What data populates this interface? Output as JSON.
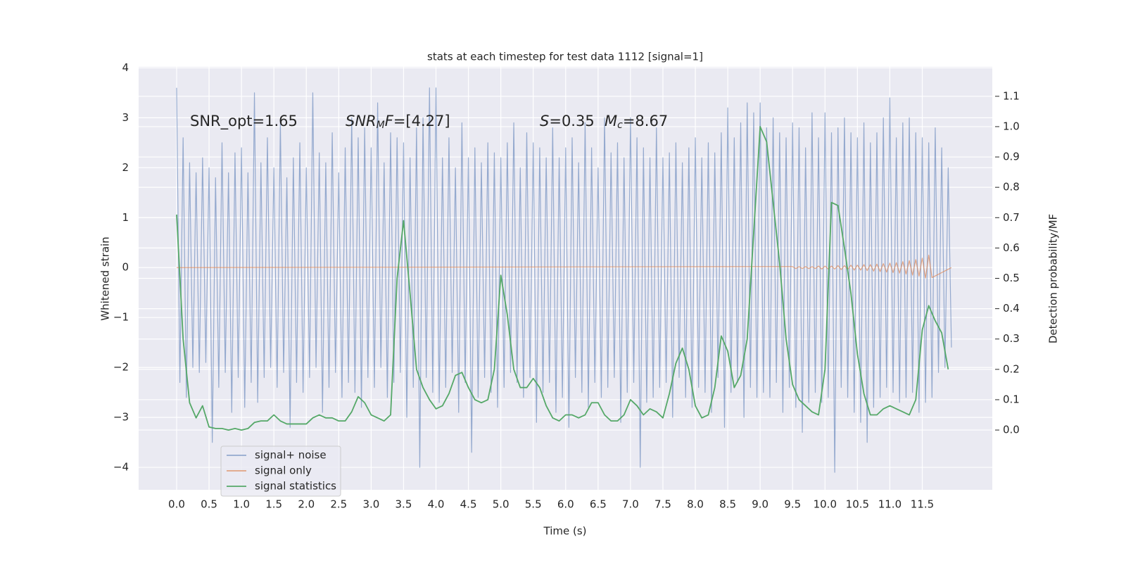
{
  "chart_data": {
    "type": "line",
    "title": "stats at each timestep for test data 1112 [signal=1]",
    "xlabel": "Time (s)",
    "ylabel": "Whitened strain",
    "y2label": "Detection probability/MF",
    "xlim": [
      -0.586,
      12.58
    ],
    "ylim": [
      -4.45,
      4.02
    ],
    "y2lim": [
      -0.197,
      1.197
    ],
    "grid": true,
    "legend": "lower left",
    "xticks": [
      {
        "value": 0,
        "label": "0.0"
      },
      0.5,
      {
        "value": 1,
        "label": "1.0"
      },
      1.5,
      {
        "value": 2,
        "label": "2.0"
      },
      2.5,
      {
        "value": 3,
        "label": "3.0"
      },
      3.5,
      {
        "value": 4,
        "label": "4.0"
      },
      4.5,
      {
        "value": 5,
        "label": "5.0"
      },
      5.5,
      {
        "value": 6,
        "label": "6.0"
      },
      6.5,
      {
        "value": 7,
        "label": "7.0"
      },
      7.5,
      {
        "value": 8,
        "label": "8.0"
      },
      8.5,
      {
        "value": 9,
        "label": "9.0"
      },
      9.5,
      {
        "value": 10,
        "label": "10.0"
      },
      10.5,
      {
        "value": 11,
        "label": "11.0"
      },
      11.5
    ],
    "yticks": [
      {
        "value": -4,
        "label": "−4"
      },
      {
        "value": -3,
        "label": "−3"
      },
      {
        "value": -2,
        "label": "−2"
      },
      {
        "value": -1,
        "label": "−1"
      },
      0,
      1,
      2,
      3,
      4
    ],
    "y2ticks": [
      {
        "value": 0,
        "label": "0.0"
      },
      0.1,
      0.2,
      0.3,
      0.4,
      0.5,
      0.6,
      0.7,
      0.8,
      0.9,
      {
        "value": 1,
        "label": "1.0"
      },
      1.1
    ],
    "annotations": [
      [
        {
          "text": "SNR_opt=1.65"
        }
      ],
      [
        {
          "text": "SNR",
          "style": "italic"
        },
        {
          "text": "M",
          "style": "sub"
        },
        {
          "text": "F",
          "style": "italic"
        },
        {
          "text": "=[4.27]"
        }
      ],
      [
        {
          "text": "S",
          "style": "italic"
        },
        {
          "text": "=0.35"
        }
      ],
      [
        {
          "text": "M",
          "style": "italic"
        },
        {
          "text": "c",
          "style": "sub"
        },
        {
          "text": "=8.67"
        }
      ]
    ],
    "series": [
      {
        "name": "signal+ noise",
        "color": "#4c72b0",
        "alpha": 0.55,
        "x": [
          0,
          0.05,
          0.1,
          0.15,
          0.2,
          0.25,
          0.3,
          0.35,
          0.4,
          0.45,
          0.5,
          0.55,
          0.6,
          0.65,
          0.7,
          0.75,
          0.8,
          0.85,
          0.9,
          0.95,
          1,
          1.05,
          1.1,
          1.15,
          1.2,
          1.25,
          1.3,
          1.35,
          1.4,
          1.45,
          1.5,
          1.55,
          1.6,
          1.65,
          1.7,
          1.75,
          1.8,
          1.85,
          1.9,
          1.95,
          2,
          2.05,
          2.1,
          2.15,
          2.2,
          2.25,
          2.3,
          2.35,
          2.4,
          2.45,
          2.5,
          2.55,
          2.6,
          2.65,
          2.7,
          2.75,
          2.8,
          2.85,
          2.9,
          2.95,
          3,
          3.05,
          3.1,
          3.15,
          3.2,
          3.25,
          3.3,
          3.35,
          3.4,
          3.45,
          3.5,
          3.55,
          3.6,
          3.65,
          3.7,
          3.75,
          3.8,
          3.85,
          3.9,
          3.95,
          4,
          4.05,
          4.1,
          4.15,
          4.2,
          4.25,
          4.3,
          4.35,
          4.4,
          4.45,
          4.5,
          4.55,
          4.6,
          4.65,
          4.7,
          4.75,
          4.8,
          4.85,
          4.9,
          4.95,
          5,
          5.05,
          5.1,
          5.15,
          5.2,
          5.25,
          5.3,
          5.35,
          5.4,
          5.45,
          5.5,
          5.55,
          5.6,
          5.65,
          5.7,
          5.75,
          5.8,
          5.85,
          5.9,
          5.95,
          6,
          6.05,
          6.1,
          6.15,
          6.2,
          6.25,
          6.3,
          6.35,
          6.4,
          6.45,
          6.5,
          6.55,
          6.6,
          6.65,
          6.7,
          6.75,
          6.8,
          6.85,
          6.9,
          6.95,
          7,
          7.05,
          7.1,
          7.15,
          7.2,
          7.25,
          7.3,
          7.35,
          7.4,
          7.45,
          7.5,
          7.55,
          7.6,
          7.65,
          7.7,
          7.75,
          7.8,
          7.85,
          7.9,
          7.95,
          8,
          8.05,
          8.1,
          8.15,
          8.2,
          8.25,
          8.3,
          8.35,
          8.4,
          8.45,
          8.5,
          8.55,
          8.6,
          8.65,
          8.7,
          8.75,
          8.8,
          8.85,
          8.9,
          8.95,
          9,
          9.05,
          9.1,
          9.15,
          9.2,
          9.25,
          9.3,
          9.35,
          9.4,
          9.45,
          9.5,
          9.55,
          9.6,
          9.65,
          9.7,
          9.75,
          9.8,
          9.85,
          9.9,
          9.95,
          10,
          10.05,
          10.1,
          10.15,
          10.2,
          10.25,
          10.3,
          10.35,
          10.4,
          10.45,
          10.5,
          10.55,
          10.6,
          10.65,
          10.7,
          10.75,
          10.8,
          10.85,
          10.9,
          10.95,
          11,
          11.05,
          11.1,
          11.15,
          11.2,
          11.25,
          11.3,
          11.35,
          11.4,
          11.45,
          11.5,
          11.55,
          11.6,
          11.65,
          11.7,
          11.75,
          11.8,
          11.85,
          11.9,
          11.95
        ],
        "values": [
          3.6,
          -2.3,
          2.6,
          -2.6,
          2.1,
          -2.0,
          1.9,
          -2.1,
          2.2,
          -1.9,
          2.0,
          -3.5,
          1.8,
          -2.4,
          2.5,
          -2.1,
          1.9,
          -2.9,
          2.3,
          -2.2,
          2.4,
          -2.8,
          1.9,
          -2.3,
          3.5,
          -2.7,
          2.1,
          -2.2,
          2.6,
          -2.0,
          2.0,
          -2.4,
          2.9,
          -2.1,
          1.8,
          -3.2,
          2.2,
          -2.3,
          2.5,
          -2.5,
          2.0,
          -2.2,
          3.5,
          -2.0,
          2.3,
          -2.9,
          2.1,
          -2.4,
          2.7,
          -2.1,
          1.9,
          -2.6,
          2.4,
          -2.3,
          3.0,
          -2.5,
          2.6,
          -2.8,
          2.8,
          -2.2,
          2.4,
          -2.4,
          3.3,
          -2.0,
          2.1,
          -2.6,
          2.7,
          -2.3,
          2.6,
          -2.1,
          2.5,
          -3.0,
          2.2,
          -2.4,
          2.8,
          -4.0,
          3.0,
          -2.2,
          3.6,
          -2.5,
          3.6,
          -2.7,
          2.2,
          -2.4,
          2.6,
          -2.1,
          2.0,
          -2.9,
          2.9,
          -2.3,
          2.2,
          -3.7,
          2.4,
          -2.6,
          2.1,
          -2.2,
          2.5,
          -2.5,
          2.3,
          -2.8,
          2.2,
          -2.4,
          2.5,
          -2.1,
          2.9,
          -2.3,
          2.0,
          -2.6,
          2.7,
          -2.2,
          2.5,
          -3.1,
          2.4,
          -2.5,
          2.2,
          -2.3,
          2.8,
          -2.9,
          2.2,
          -2.6,
          2.4,
          -3.2,
          2.6,
          -2.2,
          2.1,
          -2.5,
          2.9,
          -2.8,
          2.4,
          -2.3,
          2.0,
          -2.6,
          3.0,
          -2.4,
          2.3,
          -2.2,
          2.5,
          -3.1,
          2.2,
          -2.5,
          3.0,
          -2.3,
          2.6,
          -4.0,
          2.4,
          -2.7,
          2.2,
          -2.6,
          2.8,
          -2.4,
          2.2,
          -2.3,
          2.3,
          -3.0,
          2.5,
          -2.2,
          2.1,
          -2.6,
          2.4,
          -2.8,
          2.6,
          -2.4,
          2.2,
          -2.5,
          2.5,
          -2.9,
          2.3,
          -2.2,
          2.7,
          -3.2,
          3.2,
          -2.5,
          2.6,
          -2.3,
          2.9,
          -3.0,
          3.3,
          -2.4,
          3.1,
          -2.6,
          3.3,
          -2.5,
          2.8,
          -2.6,
          3.0,
          -2.3,
          2.7,
          -2.9,
          2.6,
          -2.4,
          2.9,
          -2.8,
          2.8,
          -3.3,
          2.4,
          -2.7,
          3.1,
          -2.5,
          2.6,
          -2.7,
          3.1,
          -2.6,
          2.7,
          -4.1,
          2.8,
          -2.4,
          3.0,
          -2.6,
          2.7,
          -2.9,
          2.6,
          -3.1,
          2.9,
          -3.5,
          2.5,
          -2.8,
          2.7,
          -2.6,
          3.0,
          -2.4,
          3.4,
          -2.5,
          2.6,
          -2.7,
          2.9,
          -2.6,
          3.0,
          -2.5,
          2.7,
          -2.9,
          2.6,
          -2.7,
          2.5,
          -2.6,
          2.8,
          -2.1,
          2.4,
          -2.0,
          2.0,
          -1.6
        ]
      },
      {
        "name": "signal only",
        "color": "#dd8452",
        "alpha": 0.7,
        "x": [
          0,
          9.5,
          9.55,
          9.6,
          9.65,
          9.7,
          9.75,
          9.8,
          9.85,
          9.9,
          9.95,
          10,
          10.05,
          10.1,
          10.15,
          10.2,
          10.25,
          10.3,
          10.35,
          10.4,
          10.45,
          10.5,
          10.55,
          10.6,
          10.65,
          10.7,
          10.75,
          10.8,
          10.85,
          10.9,
          10.95,
          11,
          11.05,
          11.1,
          11.15,
          11.2,
          11.25,
          11.3,
          11.35,
          11.4,
          11.45,
          11.5,
          11.55,
          11.6,
          11.65,
          11.95
        ],
        "values": [
          0,
          0.02,
          -0.02,
          0.02,
          -0.02,
          0.02,
          -0.02,
          0.02,
          -0.02,
          0.03,
          -0.03,
          0.03,
          -0.03,
          0.03,
          -0.03,
          0.04,
          -0.04,
          0.04,
          -0.04,
          0.05,
          -0.05,
          0.05,
          -0.05,
          0.06,
          -0.06,
          0.06,
          -0.07,
          0.07,
          -0.08,
          0.08,
          -0.09,
          0.09,
          -0.1,
          0.1,
          -0.11,
          0.12,
          -0.13,
          0.14,
          -0.15,
          0.16,
          -0.17,
          0.19,
          -0.21,
          0.25,
          -0.2,
          0
        ]
      },
      {
        "name": "signal statistics",
        "color": "#55a868",
        "alpha": 1,
        "axis": "y2",
        "x": [
          0,
          0.1,
          0.2,
          0.3,
          0.4,
          0.5,
          0.6,
          0.7,
          0.8,
          0.9,
          1,
          1.1,
          1.2,
          1.3,
          1.4,
          1.5,
          1.6,
          1.7,
          1.8,
          1.9,
          2,
          2.1,
          2.2,
          2.3,
          2.4,
          2.5,
          2.6,
          2.7,
          2.8,
          2.9,
          3,
          3.1,
          3.2,
          3.3,
          3.4,
          3.5,
          3.6,
          3.7,
          3.8,
          3.9,
          4,
          4.1,
          4.2,
          4.3,
          4.4,
          4.5,
          4.6,
          4.7,
          4.8,
          4.9,
          5,
          5.1,
          5.2,
          5.3,
          5.4,
          5.5,
          5.6,
          5.7,
          5.8,
          5.9,
          6,
          6.1,
          6.2,
          6.3,
          6.4,
          6.5,
          6.6,
          6.7,
          6.8,
          6.9,
          7,
          7.1,
          7.2,
          7.3,
          7.4,
          7.5,
          7.6,
          7.7,
          7.8,
          7.9,
          8,
          8.1,
          8.2,
          8.3,
          8.4,
          8.5,
          8.6,
          8.7,
          8.8,
          8.9,
          9,
          9.1,
          9.2,
          9.3,
          9.4,
          9.5,
          9.6,
          9.7,
          9.8,
          9.9,
          10,
          10.1,
          10.2,
          10.3,
          10.4,
          10.5,
          10.6,
          10.7,
          10.8,
          10.9,
          11,
          11.1,
          11.2,
          11.3,
          11.4,
          11.5,
          11.6,
          11.7,
          11.8,
          11.9
        ],
        "values": [
          0.71,
          0.3,
          0.09,
          0.04,
          0.08,
          0.01,
          0.005,
          0.005,
          0,
          0.005,
          0,
          0.005,
          0.025,
          0.03,
          0.03,
          0.05,
          0.03,
          0.02,
          0.02,
          0.02,
          0.02,
          0.04,
          0.05,
          0.04,
          0.04,
          0.03,
          0.03,
          0.06,
          0.11,
          0.09,
          0.05,
          0.04,
          0.03,
          0.05,
          0.5,
          0.69,
          0.45,
          0.2,
          0.14,
          0.1,
          0.07,
          0.08,
          0.12,
          0.18,
          0.19,
          0.14,
          0.1,
          0.09,
          0.1,
          0.2,
          0.51,
          0.38,
          0.2,
          0.14,
          0.14,
          0.17,
          0.14,
          0.08,
          0.04,
          0.03,
          0.05,
          0.05,
          0.04,
          0.05,
          0.09,
          0.09,
          0.05,
          0.03,
          0.03,
          0.05,
          0.1,
          0.08,
          0.05,
          0.07,
          0.06,
          0.04,
          0.12,
          0.22,
          0.27,
          0.2,
          0.08,
          0.04,
          0.05,
          0.14,
          0.31,
          0.26,
          0.14,
          0.18,
          0.3,
          0.65,
          1,
          0.95,
          0.75,
          0.55,
          0.3,
          0.15,
          0.1,
          0.08,
          0.06,
          0.05,
          0.2,
          0.75,
          0.74,
          0.6,
          0.45,
          0.25,
          0.12,
          0.05,
          0.05,
          0.07,
          0.08,
          0.07,
          0.06,
          0.05,
          0.1,
          0.33,
          0.41,
          0.36,
          0.32,
          0.2
        ]
      }
    ]
  }
}
